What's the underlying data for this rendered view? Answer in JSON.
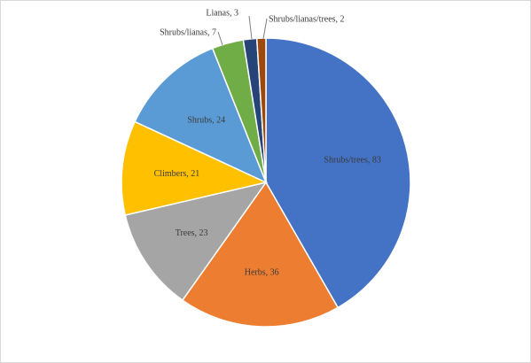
{
  "chart_data": {
    "type": "pie",
    "title": "",
    "slices": [
      {
        "label": "Shrubs/trees",
        "value": 83,
        "color": "#4472C4"
      },
      {
        "label": "Herbs",
        "value": 36,
        "color": "#ED7D31"
      },
      {
        "label": "Trees",
        "value": 23,
        "color": "#A5A5A5"
      },
      {
        "label": "Climbers",
        "value": 21,
        "color": "#FFC000"
      },
      {
        "label": "Shrubs",
        "value": 24,
        "color": "#5B9BD5"
      },
      {
        "label": "Shrubs/lianas",
        "value": 7,
        "color": "#70AD47"
      },
      {
        "label": "Lianas",
        "value": 3,
        "color": "#264478"
      },
      {
        "label": "Shrubs/lianas/trees",
        "value": 2,
        "color": "#9E480E"
      }
    ],
    "data_labels": [
      "Shrubs/trees, 83",
      "Herbs, 36",
      "Trees, 23",
      "Climbers, 21",
      "Shrubs, 24",
      "Shrubs/lianas, 7",
      "Lianas, 3",
      "Shrubs/lianas/trees, 2"
    ],
    "start_angle": "12 o'clock",
    "direction": "clockwise",
    "legend": "none"
  }
}
